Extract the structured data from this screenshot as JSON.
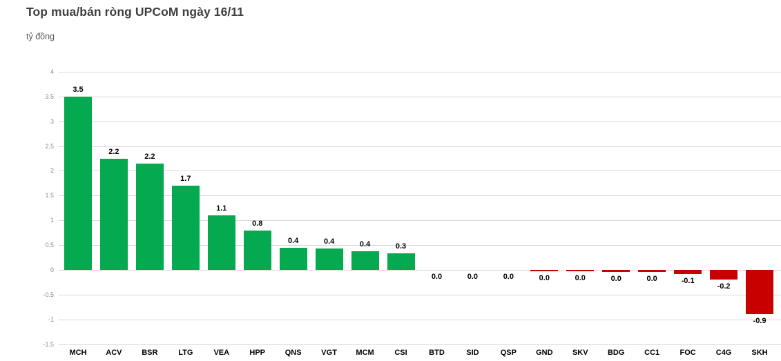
{
  "chart_data": {
    "type": "bar",
    "title": "Top mua/bán ròng UPCoM ngày 16/11",
    "subtitle_unit": "tỷ đồng",
    "xlabel": "",
    "ylabel": "tỷ đồng",
    "categories": [
      "MCH",
      "ACV",
      "BSR",
      "LTG",
      "VEA",
      "HPP",
      "QNS",
      "VGT",
      "MCM",
      "CSI",
      "BTD",
      "SID",
      "QSP",
      "GND",
      "SKV",
      "BDG",
      "CC1",
      "FOC",
      "C4G",
      "SKH"
    ],
    "values": [
      3.5,
      2.2,
      2.2,
      1.7,
      1.1,
      0.8,
      0.4,
      0.4,
      0.4,
      0.3,
      0.0,
      0.0,
      0.0,
      0.0,
      0.0,
      0.0,
      0.0,
      -0.1,
      -0.2,
      -0.9
    ],
    "data_labels": [
      "3.5",
      "2.2",
      "2.2",
      "1.7",
      "1.1",
      "0.8",
      "0.4",
      "0.4",
      "0.4",
      "0.3",
      "0.0",
      "0.0",
      "0.0",
      "0.0",
      "0.0",
      "0.0",
      "0.0",
      "-0.1",
      "-0.2",
      "-0.9"
    ],
    "bar_heights_est": [
      3.5,
      2.25,
      2.15,
      1.7,
      1.1,
      0.8,
      0.45,
      0.43,
      0.38,
      0.33,
      0,
      0,
      0,
      -0.03,
      -0.03,
      -0.04,
      -0.04,
      -0.09,
      -0.2,
      -0.9
    ],
    "ylim": [
      -1.5,
      4
    ],
    "ytick_step": 0.5,
    "ytick_labels": [
      "4",
      "3.5",
      "3",
      "2.5",
      "2",
      "1.5",
      "1",
      "0.5",
      "0",
      "-0.5",
      "-1",
      "-1.5"
    ],
    "grid": "horizontal",
    "legend_position": "none",
    "colors": {
      "positive_bar": "#05a94f",
      "negative_bar": "#c80000",
      "gridline": "#d9d9d9",
      "title_text": "#404040",
      "subtitle_text": "#595959",
      "tick_text": "#8c8c8c",
      "label_text": "#000000",
      "background": "#ffffff"
    }
  }
}
